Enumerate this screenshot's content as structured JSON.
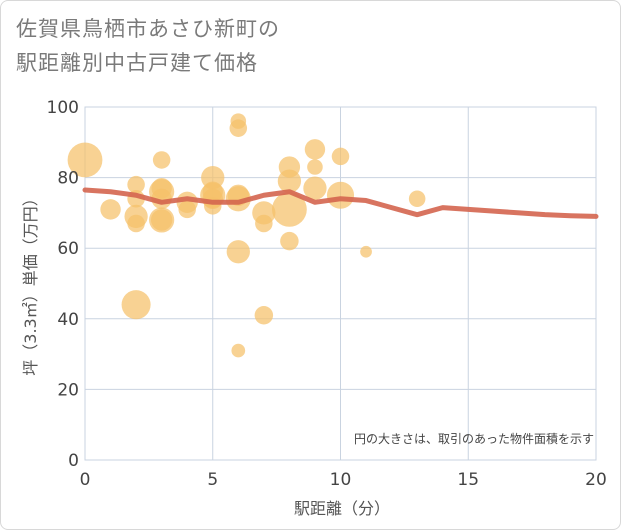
{
  "title_line1": "佐賀県鳥栖市あさひ新町の",
  "title_line2": "駅距離別中古戸建て価格",
  "chart_data": {
    "type": "scatter",
    "title": "佐賀県鳥栖市あさひ新町の駅距離別中古戸建て価格",
    "xlabel": "駅距離（分）",
    "ylabel": "坪（3.3㎡）単価（万円）",
    "xlim": [
      0,
      20
    ],
    "ylim": [
      0,
      100
    ],
    "xticks": [
      0,
      5,
      10,
      15,
      20
    ],
    "yticks": [
      0,
      20,
      40,
      60,
      80,
      100
    ],
    "annotation": "円の大きさは、取引のあった物件面積を示す",
    "bubble_color": "#f5c06a",
    "line_color": "#d4654f",
    "points": [
      {
        "x": 0,
        "y": 85,
        "size": 3.0
      },
      {
        "x": 1,
        "y": 71,
        "size": 1.5
      },
      {
        "x": 2,
        "y": 78,
        "size": 1.2
      },
      {
        "x": 2,
        "y": 74,
        "size": 1.2
      },
      {
        "x": 2,
        "y": 69,
        "size": 1.8
      },
      {
        "x": 2,
        "y": 67,
        "size": 1.2
      },
      {
        "x": 2,
        "y": 44,
        "size": 2.4
      },
      {
        "x": 3,
        "y": 85,
        "size": 1.2
      },
      {
        "x": 3,
        "y": 77,
        "size": 1.5
      },
      {
        "x": 3,
        "y": 76,
        "size": 2.0
      },
      {
        "x": 3,
        "y": 74,
        "size": 1.5
      },
      {
        "x": 3,
        "y": 68,
        "size": 2.0
      },
      {
        "x": 3,
        "y": 68,
        "size": 1.6
      },
      {
        "x": 4,
        "y": 73,
        "size": 1.6
      },
      {
        "x": 4,
        "y": 71,
        "size": 1.2
      },
      {
        "x": 5,
        "y": 80,
        "size": 1.8
      },
      {
        "x": 5,
        "y": 76,
        "size": 1.5
      },
      {
        "x": 5,
        "y": 75,
        "size": 2.0
      },
      {
        "x": 5,
        "y": 74,
        "size": 1.5
      },
      {
        "x": 5,
        "y": 72,
        "size": 1.2
      },
      {
        "x": 6,
        "y": 96,
        "size": 1.0
      },
      {
        "x": 6,
        "y": 94,
        "size": 1.2
      },
      {
        "x": 6,
        "y": 75,
        "size": 1.6
      },
      {
        "x": 6,
        "y": 74,
        "size": 2.0
      },
      {
        "x": 6,
        "y": 59,
        "size": 1.8
      },
      {
        "x": 6,
        "y": 31,
        "size": 0.8
      },
      {
        "x": 7,
        "y": 70,
        "size": 1.8
      },
      {
        "x": 7,
        "y": 67,
        "size": 1.2
      },
      {
        "x": 7,
        "y": 41,
        "size": 1.3
      },
      {
        "x": 8,
        "y": 83,
        "size": 1.6
      },
      {
        "x": 8,
        "y": 79,
        "size": 1.8
      },
      {
        "x": 8,
        "y": 71,
        "size": 3.0
      },
      {
        "x": 8,
        "y": 62,
        "size": 1.3
      },
      {
        "x": 9,
        "y": 88,
        "size": 1.5
      },
      {
        "x": 9,
        "y": 83,
        "size": 1.0
      },
      {
        "x": 9,
        "y": 77,
        "size": 1.8
      },
      {
        "x": 10,
        "y": 86,
        "size": 1.2
      },
      {
        "x": 10,
        "y": 75,
        "size": 2.2
      },
      {
        "x": 11,
        "y": 59,
        "size": 0.6
      },
      {
        "x": 13,
        "y": 74,
        "size": 1.1
      }
    ],
    "trend": {
      "x": [
        0,
        1,
        2,
        3,
        4,
        5,
        6,
        7,
        8,
        9,
        10,
        11,
        12,
        13,
        14,
        15,
        16,
        17,
        18,
        19,
        20
      ],
      "y": [
        76.5,
        76,
        75,
        73,
        74,
        73,
        73,
        75,
        76,
        73,
        74,
        73.5,
        71.5,
        69.5,
        71.5,
        71,
        70.5,
        70,
        69.5,
        69.2,
        69
      ]
    }
  }
}
